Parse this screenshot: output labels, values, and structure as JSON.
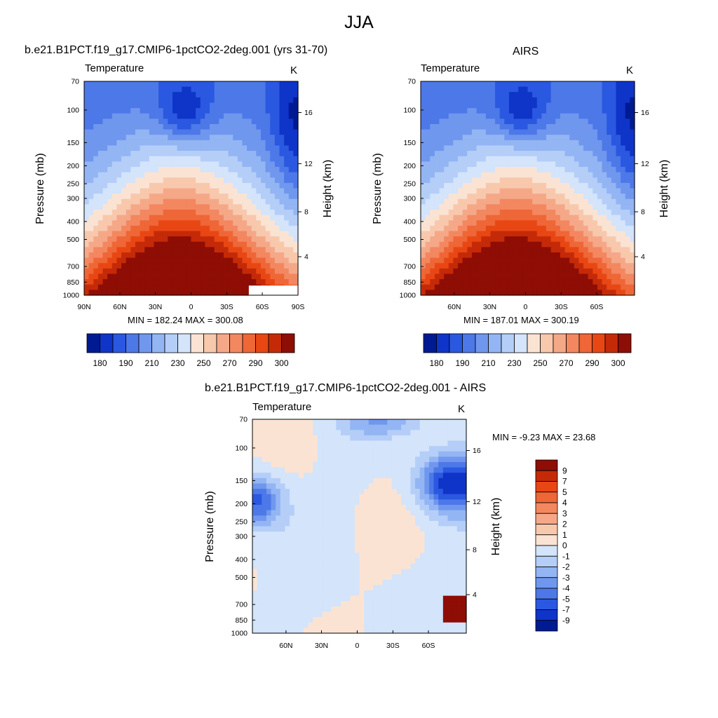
{
  "main_title": "JJA",
  "colors": {
    "hot_ramp": [
      "#fbe3d3",
      "#f8c8ad",
      "#f5a888",
      "#f38760",
      "#ef6637",
      "#e84714",
      "#c52a08",
      "#8e0d05"
    ],
    "cold_ramp": [
      "#d3e4fb",
      "#b4cef8",
      "#93b5f3",
      "#7097ee",
      "#4d78e8",
      "#2b58e0",
      "#0f34c8",
      "#001a92"
    ]
  },
  "chart_data": [
    {
      "type": "heatmap",
      "title": "b.e21.B1PCT.f19_g17.CMIP6-1pctCO2-2deg.001 (yrs 31-70)",
      "left_label": "Temperature",
      "units": "K",
      "ylabel": "Pressure (mb)",
      "ylabel_right": "Height (km)",
      "x_ticks": [
        "90N",
        "60N",
        "30N",
        "0",
        "30S",
        "60S",
        "90S"
      ],
      "y_ticks": [
        "70",
        "100",
        "150",
        "200",
        "250",
        "300",
        "400",
        "500",
        "700",
        "850",
        "1000"
      ],
      "y_right_ticks": [
        "16",
        "12",
        "8",
        "4"
      ],
      "stats": "MIN = 182.24  MAX = 300.08",
      "min": 182.24,
      "max": 300.08,
      "colorbar_labels": [
        "180",
        "190",
        "210",
        "230",
        "250",
        "270",
        "290",
        "300"
      ]
    },
    {
      "type": "heatmap",
      "title": "AIRS",
      "left_label": "Temperature",
      "units": "K",
      "ylabel": "Pressure (mb)",
      "ylabel_right": "Height (km)",
      "x_ticks": [
        "60N",
        "30N",
        "0",
        "30S",
        "60S"
      ],
      "y_ticks": [
        "70",
        "100",
        "150",
        "200",
        "250",
        "300",
        "400",
        "500",
        "700",
        "850",
        "1000"
      ],
      "y_right_ticks": [
        "16",
        "12",
        "8",
        "4"
      ],
      "stats": "MIN = 187.01  MAX = 300.19",
      "min": 187.01,
      "max": 300.19,
      "colorbar_labels": [
        "180",
        "190",
        "210",
        "230",
        "250",
        "270",
        "290",
        "300"
      ]
    },
    {
      "type": "heatmap",
      "title": "b.e21.B1PCT.f19_g17.CMIP6-1pctCO2-2deg.001 - AIRS",
      "left_label": "Temperature",
      "units": "K",
      "ylabel": "Pressure (mb)",
      "ylabel_right": "Height (km)",
      "x_ticks": [
        "60N",
        "30N",
        "0",
        "30S",
        "60S"
      ],
      "y_ticks": [
        "70",
        "100",
        "150",
        "200",
        "250",
        "300",
        "400",
        "500",
        "700",
        "850",
        "1000"
      ],
      "y_right_ticks": [
        "16",
        "12",
        "8",
        "4"
      ],
      "stats": "MIN =  -9.23  MAX =  23.68",
      "min": -9.23,
      "max": 23.68,
      "colorbar_labels": [
        "9",
        "7",
        "5",
        "4",
        "3",
        "2",
        "1",
        "0",
        "-1",
        "-2",
        "-3",
        "-4",
        "-5",
        "-7",
        "-9"
      ]
    }
  ]
}
